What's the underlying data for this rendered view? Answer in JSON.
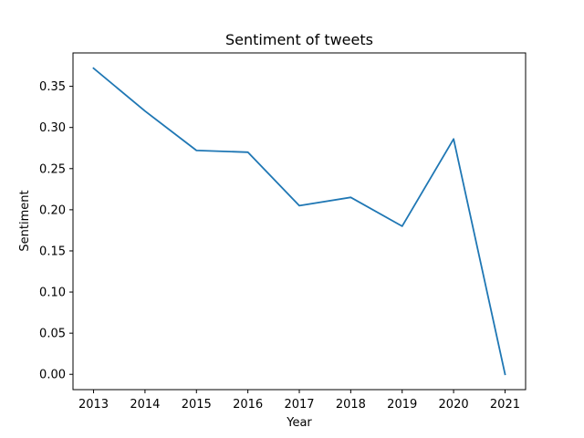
{
  "chart_data": {
    "type": "line",
    "title": "Sentiment of tweets",
    "xlabel": "Year",
    "ylabel": "Sentiment",
    "x": [
      2013,
      2014,
      2015,
      2016,
      2017,
      2018,
      2019,
      2020,
      2021
    ],
    "x_tick_labels": [
      "2013",
      "2014",
      "2015",
      "2016",
      "2017",
      "2018",
      "2019",
      "2020",
      "2021"
    ],
    "y_ticks": [
      0.0,
      0.05,
      0.1,
      0.15,
      0.2,
      0.25,
      0.3,
      0.35
    ],
    "y_tick_labels": [
      "0.00",
      "0.05",
      "0.10",
      "0.15",
      "0.20",
      "0.25",
      "0.30",
      "0.35"
    ],
    "xlim": [
      2012.6,
      2021.4
    ],
    "ylim": [
      -0.0186,
      0.3906
    ],
    "grid": false,
    "series": [
      {
        "values": [
          0.372,
          0.32,
          0.272,
          0.27,
          0.205,
          0.215,
          0.18,
          0.286,
          0.0
        ],
        "color": "#1f77b4"
      }
    ]
  }
}
